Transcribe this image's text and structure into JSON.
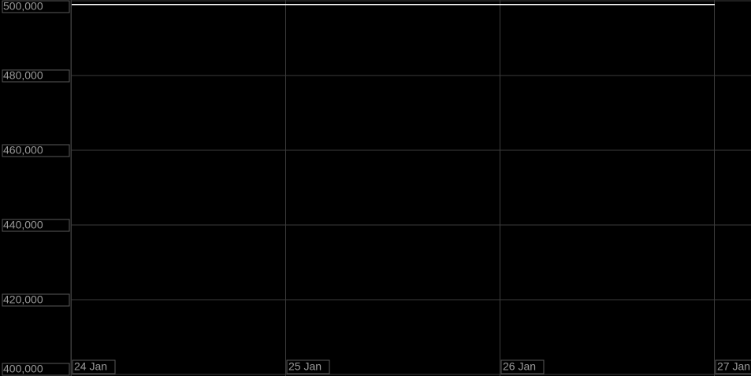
{
  "chart_data": {
    "type": "line",
    "x": [
      "24 Jan",
      "25 Jan",
      "26 Jan",
      "27 Jan"
    ],
    "series": [
      {
        "color": "#ffffff",
        "values": [
          499000,
          499000,
          499000,
          499000
        ]
      }
    ],
    "ylim": [
      400000,
      500000
    ],
    "yticks": [
      {
        "value": 400000,
        "label": "400,000"
      },
      {
        "value": 420000,
        "label": "420,000"
      },
      {
        "value": 440000,
        "label": "440,000"
      },
      {
        "value": 460000,
        "label": "460,000"
      },
      {
        "value": 480000,
        "label": "480,000"
      },
      {
        "value": 500000,
        "label": "500,000"
      }
    ],
    "grid": true
  }
}
